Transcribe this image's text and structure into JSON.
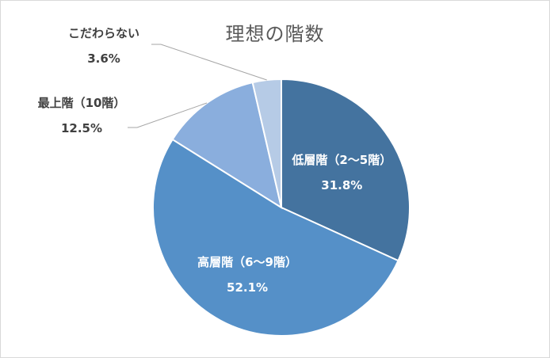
{
  "chart_data": {
    "type": "pie",
    "title": "理想の階数",
    "slices": [
      {
        "name": "低層階（2～5階）",
        "value": 31.8,
        "value_label": "31.8%",
        "color": "#44739f",
        "label_color": "#ffffff",
        "label_placement": "inside"
      },
      {
        "name": "高層階（6～9階）",
        "value": 52.1,
        "value_label": "52.1%",
        "color": "#5590c8",
        "label_color": "#ffffff",
        "label_placement": "inside"
      },
      {
        "name": "最上階（10階）",
        "value": 12.5,
        "value_label": "12.5%",
        "color": "#8aaedd",
        "label_color": "#404040",
        "label_placement": "outside"
      },
      {
        "name": "こだわらない",
        "value": 3.6,
        "value_label": "3.6%",
        "color": "#b6cbe6",
        "label_color": "#404040",
        "label_placement": "outside"
      }
    ],
    "start_angle_deg": 0,
    "direction": "clockwise",
    "legend": "none"
  }
}
